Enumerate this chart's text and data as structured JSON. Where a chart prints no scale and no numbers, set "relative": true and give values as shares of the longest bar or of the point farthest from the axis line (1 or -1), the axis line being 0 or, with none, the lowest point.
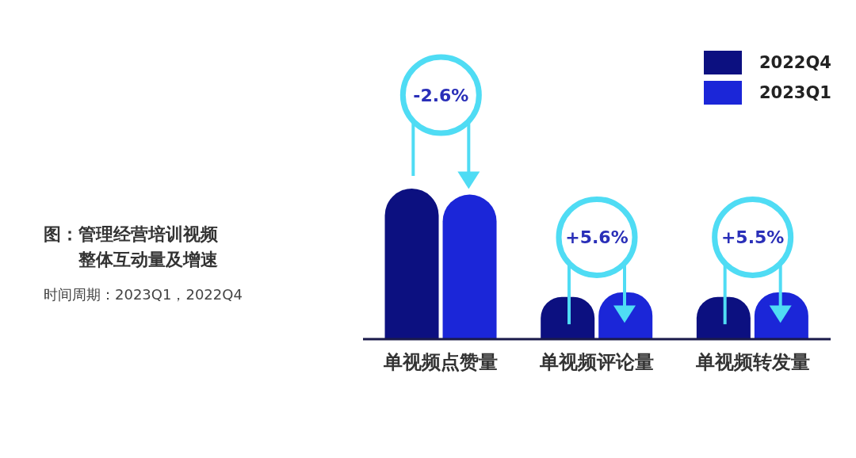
{
  "chart_data": {
    "type": "bar",
    "title": "图：管理经营培训视频整体互动量及增速",
    "relative": true,
    "categories": [
      "单视频点赞量",
      "单视频评论量",
      "单视频转发量"
    ],
    "series": [
      {
        "name": "2022Q4",
        "color": "#0c1080",
        "values": [
          1,
          0.28,
          0.28
        ]
      },
      {
        "name": "2023Q1",
        "color": "#1b26d8",
        "values": [
          0.96,
          0.31,
          0.31
        ]
      }
    ],
    "legend": "top right",
    "annotations": [
      "-2.6%",
      "+5.6%",
      "+5.5%",
      "时间周期：2023Q1，2022Q4"
    ]
  }
}
